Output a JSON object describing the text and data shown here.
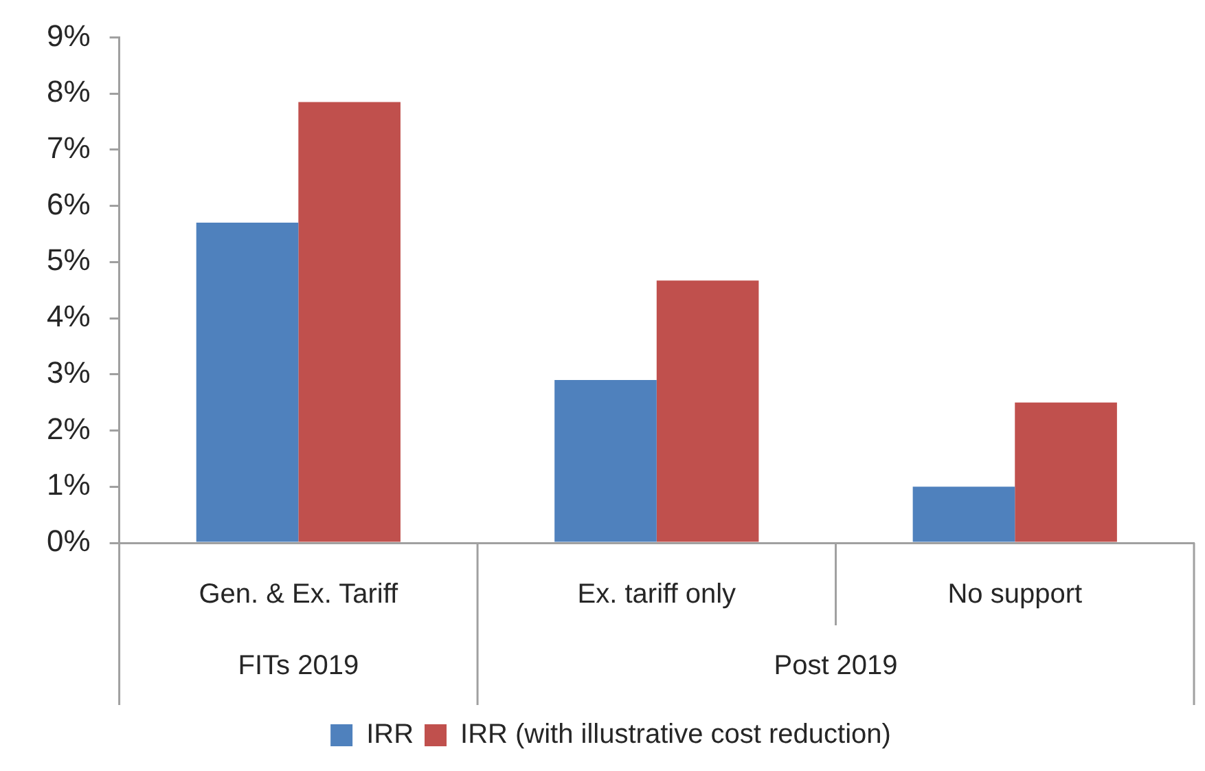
{
  "chart_data": {
    "type": "bar",
    "categories": [
      "Gen. & Ex. Tariff",
      "Ex. tariff only",
      "No support"
    ],
    "series": [
      {
        "name": "IRR",
        "color": "#4f81bd",
        "values": [
          5.7,
          2.9,
          1.0
        ]
      },
      {
        "name": "IRR (with illustrative cost reduction)",
        "color": "#c0504d",
        "values": [
          7.85,
          4.67,
          2.5
        ]
      }
    ],
    "ylim": [
      0,
      9
    ],
    "yticks": [
      {
        "value": 0,
        "label": "0%"
      },
      {
        "value": 1,
        "label": "1%"
      },
      {
        "value": 2,
        "label": "2%"
      },
      {
        "value": 3,
        "label": "3%"
      },
      {
        "value": 4,
        "label": "4%"
      },
      {
        "value": 5,
        "label": "5%"
      },
      {
        "value": 6,
        "label": "6%"
      },
      {
        "value": 7,
        "label": "7%"
      },
      {
        "value": 8,
        "label": "8%"
      },
      {
        "value": 9,
        "label": "9%"
      }
    ],
    "annotations": [
      "FITs 2019",
      "Post 2019"
    ],
    "grid": false,
    "legend": "bottom"
  }
}
